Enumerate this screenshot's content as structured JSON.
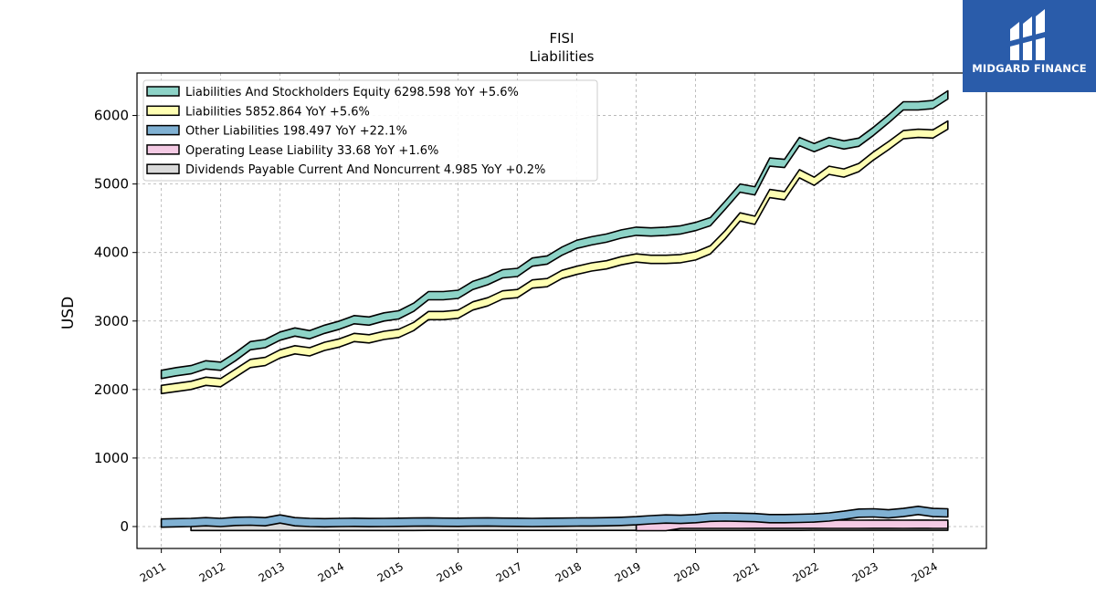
{
  "chart_data": {
    "type": "area",
    "title": "FISI",
    "subtitle": "Liabilities",
    "xlabel": "",
    "ylabel": "USD",
    "ylim": [
      -320,
      6620
    ],
    "xlim": [
      2010.59,
      2024.9
    ],
    "yticks": [
      0,
      1000,
      2000,
      3000,
      4000,
      5000,
      6000
    ],
    "xticks": [
      "2011",
      "2012",
      "2013",
      "2014",
      "2015",
      "2016",
      "2017",
      "2018",
      "2019",
      "2020",
      "2021",
      "2022",
      "2023",
      "2024"
    ],
    "grid": true,
    "legend_position": "top-left",
    "series": [
      {
        "name": "Liabilities And Stockholders Equity",
        "legend_label": "Liabilities And Stockholders Equity  6298.598 YoY +5.6%",
        "color": "#8dd3c7",
        "x": [
          2011.0,
          2011.25,
          2011.5,
          2011.75,
          2012.0,
          2012.25,
          2012.5,
          2012.75,
          2013.0,
          2013.25,
          2013.5,
          2013.75,
          2014.0,
          2014.25,
          2014.5,
          2014.75,
          2015.0,
          2015.25,
          2015.5,
          2015.75,
          2016.0,
          2016.25,
          2016.5,
          2016.75,
          2017.0,
          2017.25,
          2017.5,
          2017.75,
          2018.0,
          2018.25,
          2018.5,
          2018.75,
          2019.0,
          2019.25,
          2019.5,
          2019.75,
          2020.0,
          2020.25,
          2020.5,
          2020.75,
          2021.0,
          2021.25,
          2021.5,
          2021.75,
          2022.0,
          2022.25,
          2022.5,
          2022.75,
          2023.0,
          2023.25,
          2023.5,
          2023.75,
          2024.0,
          2024.25
        ],
        "values": [
          2220,
          2260,
          2290,
          2360,
          2340,
          2480,
          2640,
          2670,
          2780,
          2840,
          2800,
          2880,
          2940,
          3020,
          3000,
          3060,
          3090,
          3200,
          3370,
          3370,
          3390,
          3520,
          3590,
          3690,
          3710,
          3860,
          3890,
          4020,
          4120,
          4170,
          4210,
          4270,
          4310,
          4300,
          4310,
          4330,
          4380,
          4450,
          4690,
          4940,
          4900,
          5320,
          5300,
          5620,
          5530,
          5620,
          5570,
          5610,
          5770,
          5950,
          6140,
          6140,
          6160,
          6300
        ]
      },
      {
        "name": "Liabilities",
        "legend_label": "Liabilities  5852.864 YoY +5.6%",
        "color": "#ffffb3",
        "x": [
          2011.0,
          2011.25,
          2011.5,
          2011.75,
          2012.0,
          2012.25,
          2012.5,
          2012.75,
          2013.0,
          2013.25,
          2013.5,
          2013.75,
          2014.0,
          2014.25,
          2014.5,
          2014.75,
          2015.0,
          2015.25,
          2015.5,
          2015.75,
          2016.0,
          2016.25,
          2016.5,
          2016.75,
          2017.0,
          2017.25,
          2017.5,
          2017.75,
          2018.0,
          2018.25,
          2018.5,
          2018.75,
          2019.0,
          2019.25,
          2019.5,
          2019.75,
          2020.0,
          2020.25,
          2020.5,
          2020.75,
          2021.0,
          2021.25,
          2021.5,
          2021.75,
          2022.0,
          2022.25,
          2022.5,
          2022.75,
          2023.0,
          2023.25,
          2023.5,
          2023.75,
          2024.0,
          2024.25
        ],
        "values": [
          2000,
          2030,
          2060,
          2120,
          2100,
          2240,
          2380,
          2410,
          2520,
          2580,
          2550,
          2630,
          2680,
          2760,
          2740,
          2790,
          2820,
          2920,
          3080,
          3080,
          3100,
          3220,
          3280,
          3380,
          3400,
          3540,
          3560,
          3680,
          3740,
          3790,
          3820,
          3880,
          3920,
          3900,
          3900,
          3910,
          3950,
          4040,
          4260,
          4520,
          4470,
          4860,
          4830,
          5150,
          5040,
          5200,
          5160,
          5240,
          5410,
          5560,
          5720,
          5740,
          5730,
          5860
        ]
      },
      {
        "name": "Other Liabilities",
        "legend_label": "Other Liabilities  198.497 YoY +22.1%",
        "color": "#80b1d3",
        "x": [
          2011.0,
          2011.25,
          2011.5,
          2011.75,
          2012.0,
          2012.25,
          2012.5,
          2012.75,
          2013.0,
          2013.25,
          2013.5,
          2013.75,
          2014.0,
          2014.25,
          2014.5,
          2014.75,
          2015.0,
          2015.25,
          2015.5,
          2015.75,
          2016.0,
          2016.25,
          2016.5,
          2016.75,
          2017.0,
          2017.25,
          2017.5,
          2017.75,
          2018.0,
          2018.25,
          2018.5,
          2018.75,
          2019.0,
          2019.25,
          2019.5,
          2019.75,
          2020.0,
          2020.25,
          2020.5,
          2020.75,
          2021.0,
          2021.25,
          2021.5,
          2021.75,
          2022.0,
          2022.25,
          2022.5,
          2022.75,
          2023.0,
          2023.25,
          2023.5,
          2023.75,
          2024.0,
          2024.25
        ],
        "values": [
          50,
          55,
          60,
          70,
          60,
          75,
          80,
          70,
          110,
          70,
          60,
          55,
          60,
          62,
          58,
          60,
          62,
          65,
          68,
          64,
          62,
          65,
          68,
          64,
          62,
          60,
          62,
          64,
          66,
          68,
          70,
          75,
          85,
          100,
          110,
          105,
          115,
          135,
          140,
          135,
          130,
          115,
          115,
          120,
          125,
          140,
          165,
          195,
          200,
          185,
          205,
          235,
          205,
          200
        ]
      },
      {
        "name": "Operating Lease Liability",
        "legend_label": "Operating Lease Liability  33.68 YoY +1.6%",
        "color": "#f4cae4",
        "x": [
          2019.0,
          2019.25,
          2019.5,
          2019.75,
          2020.0,
          2020.25,
          2020.5,
          2020.75,
          2021.0,
          2021.25,
          2021.5,
          2021.75,
          2022.0,
          2022.25,
          2022.5,
          2022.75,
          2023.0,
          2023.25,
          2023.5,
          2023.75,
          2024.0,
          2024.25
        ],
        "values": [
          0,
          0,
          0,
          33,
          33,
          33,
          33,
          33,
          34,
          34,
          34,
          34,
          34,
          33,
          33,
          33,
          34,
          34,
          33,
          34,
          33,
          34
        ]
      },
      {
        "name": "Dividends Payable Current And Noncurrent",
        "legend_label": "Dividends Payable Current And Noncurrent  4.985 YoY +0.2%",
        "color": "#d9d9d9",
        "x": [
          2011.5,
          2011.75,
          2012.0,
          2012.25,
          2012.5,
          2012.75,
          2013.0,
          2013.25,
          2013.5,
          2013.75,
          2014.0,
          2014.25,
          2014.5,
          2014.75,
          2015.0,
          2015.25,
          2015.5,
          2015.75,
          2016.0,
          2016.25,
          2016.5,
          2016.75,
          2017.0,
          2017.25,
          2017.5,
          2017.75,
          2018.0,
          2018.25,
          2018.5,
          2018.75,
          2019.0,
          2019.25,
          2019.5,
          2019.75,
          2020.0,
          2020.25,
          2020.5,
          2020.75,
          2021.0,
          2021.25,
          2021.5,
          2021.75,
          2022.0,
          2022.25,
          2022.5,
          2022.75,
          2023.0,
          2023.25,
          2023.5,
          2023.75,
          2024.0,
          2024.25
        ],
        "values": [
          3,
          3,
          3,
          3,
          3,
          3,
          3,
          3,
          3,
          3,
          3,
          3,
          3,
          3,
          3,
          3,
          4,
          4,
          4,
          4,
          4,
          4,
          4,
          4,
          4,
          4,
          4,
          4,
          4,
          4,
          4,
          4,
          4,
          4,
          4,
          4,
          4,
          4,
          4,
          4,
          4,
          4,
          5,
          5,
          5,
          5,
          5,
          5,
          5,
          5,
          5,
          5
        ]
      }
    ]
  },
  "logo": {
    "text": "MIDGARD FINANCE",
    "background": "#2a5caa"
  }
}
